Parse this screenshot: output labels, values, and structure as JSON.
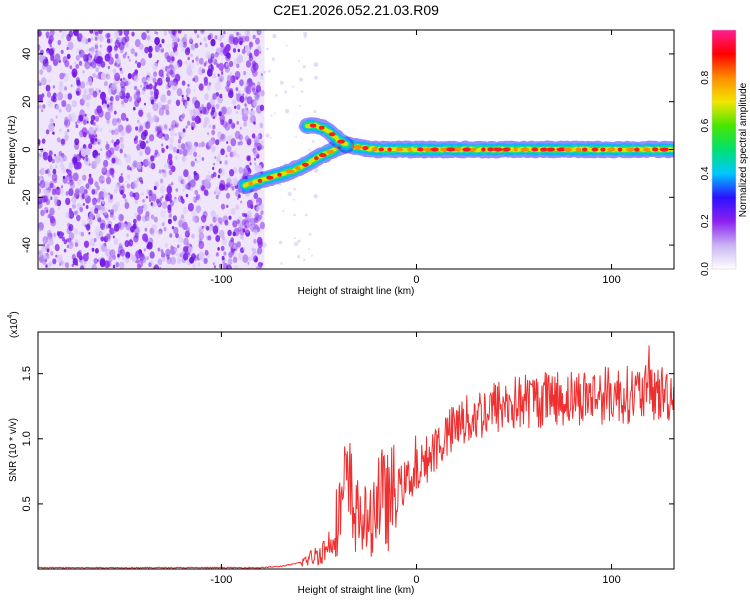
{
  "chart_data": [
    {
      "type": "heatmap",
      "title": "C2E1.2026.052.21.03.R09",
      "xlabel": "Height of straight line (km)",
      "ylabel": "Frequency (Hz)",
      "xlim": [
        -194,
        132
      ],
      "ylim": [
        -50,
        50
      ],
      "x_ticks": [
        -100,
        0,
        100
      ],
      "y_ticks": [
        -40,
        -20,
        0,
        20,
        40
      ],
      "noise_region_x": [
        -194,
        -82
      ],
      "ridge": {
        "x": [
          -88,
          -80,
          -72,
          -64,
          -56,
          -50,
          -44,
          -40,
          -36,
          -30,
          -20,
          0,
          20,
          40,
          60,
          80,
          100,
          120,
          131
        ],
        "y": [
          -15,
          -13,
          -11,
          -9,
          -6,
          -3,
          -1,
          1,
          2,
          1,
          0,
          0,
          0,
          0,
          0,
          0,
          0,
          0,
          0
        ]
      },
      "branch": {
        "x": [
          -56,
          -52,
          -48,
          -44,
          -40,
          -36
        ],
        "y": [
          10,
          10,
          9,
          7,
          4,
          2
        ]
      },
      "colorbar": {
        "label": "Normalized spectral amplitude",
        "ticks": [
          0.0,
          0.2,
          0.4,
          0.6,
          0.8
        ],
        "range": [
          0,
          1
        ],
        "colors": [
          "#ffffff",
          "#c9b3f5",
          "#8c1ff0",
          "#2a12ff",
          "#00c8ff",
          "#00e070",
          "#49e600",
          "#f2e600",
          "#ff8c00",
          "#ff0000",
          "#ff1e96"
        ]
      }
    },
    {
      "type": "line",
      "xlabel": "Height of straight line (km)",
      "ylabel": "SNR (10 * v/v)",
      "exponent_label": "(x10",
      "exponent_power": "4",
      "exponent_close": ")",
      "xlim": [
        -194,
        132
      ],
      "ylim": [
        0,
        1.82
      ],
      "x_ticks": [
        -100,
        0,
        100
      ],
      "y_ticks": [
        0.5,
        1.0,
        1.5
      ],
      "series": [
        {
          "name": "SNR",
          "color": "#f03030",
          "x": [
            -194,
            -160,
            -130,
            -100,
            -80,
            -70,
            -62,
            -56,
            -50,
            -46,
            -44,
            -42,
            -40,
            -38,
            -36,
            -34,
            -32,
            -30,
            -28,
            -26,
            -24,
            -22,
            -20,
            -18,
            -16,
            -14,
            -12,
            -10,
            -6,
            -2,
            2,
            6,
            10,
            14,
            18,
            24,
            30,
            40,
            50,
            60,
            70,
            80,
            90,
            100,
            110,
            120,
            131
          ],
          "y": [
            0.01,
            0.01,
            0.01,
            0.01,
            0.01,
            0.02,
            0.04,
            0.07,
            0.12,
            0.16,
            0.22,
            0.34,
            0.4,
            0.52,
            0.62,
            0.58,
            0.45,
            0.4,
            0.42,
            0.36,
            0.32,
            0.45,
            0.6,
            0.55,
            0.5,
            0.52,
            0.56,
            0.6,
            0.66,
            0.72,
            0.78,
            0.86,
            0.94,
            1.0,
            1.05,
            1.12,
            1.18,
            1.24,
            1.27,
            1.3,
            1.31,
            1.32,
            1.33,
            1.34,
            1.34,
            1.35,
            1.35
          ]
        }
      ]
    }
  ]
}
